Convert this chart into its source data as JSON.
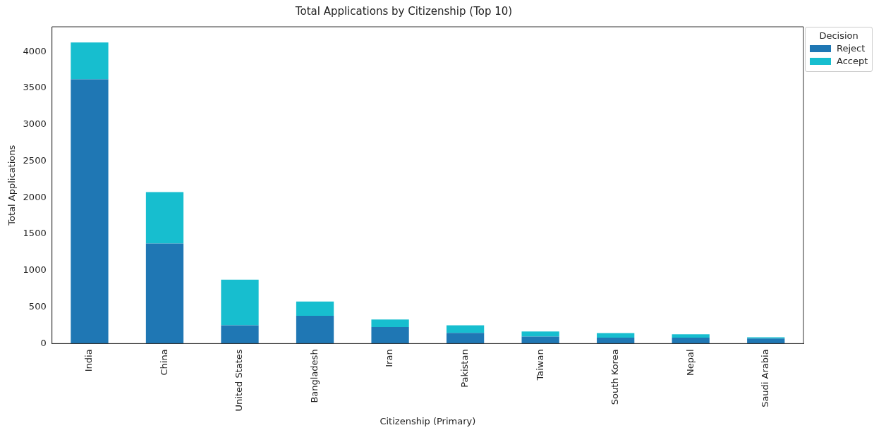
{
  "chart_data": {
    "type": "bar",
    "title": "Total Applications by Citizenship (Top 10)",
    "xlabel": "Citizenship (Primary)",
    "ylabel": "Total Applications",
    "legend_title": "Decision",
    "categories": [
      "India",
      "China",
      "United States",
      "Bangladesh",
      "Iran",
      "Pakistan",
      "Taiwan",
      "South Korea",
      "Nepal",
      "Saudi Arabia"
    ],
    "series": [
      {
        "name": "Reject",
        "color": "#1f77b4",
        "values": [
          3620,
          1370,
          250,
          380,
          225,
          145,
          95,
          82,
          80,
          68
        ]
      },
      {
        "name": "Accept",
        "color": "#17becf",
        "values": [
          505,
          705,
          625,
          195,
          105,
          105,
          70,
          62,
          46,
          18
        ]
      }
    ],
    "stacked": true,
    "ylim": [
      0,
      4340
    ],
    "yticks": [
      0,
      500,
      1000,
      1500,
      2000,
      2500,
      3000,
      3500,
      4000
    ],
    "grid": false,
    "legend": "top right"
  }
}
